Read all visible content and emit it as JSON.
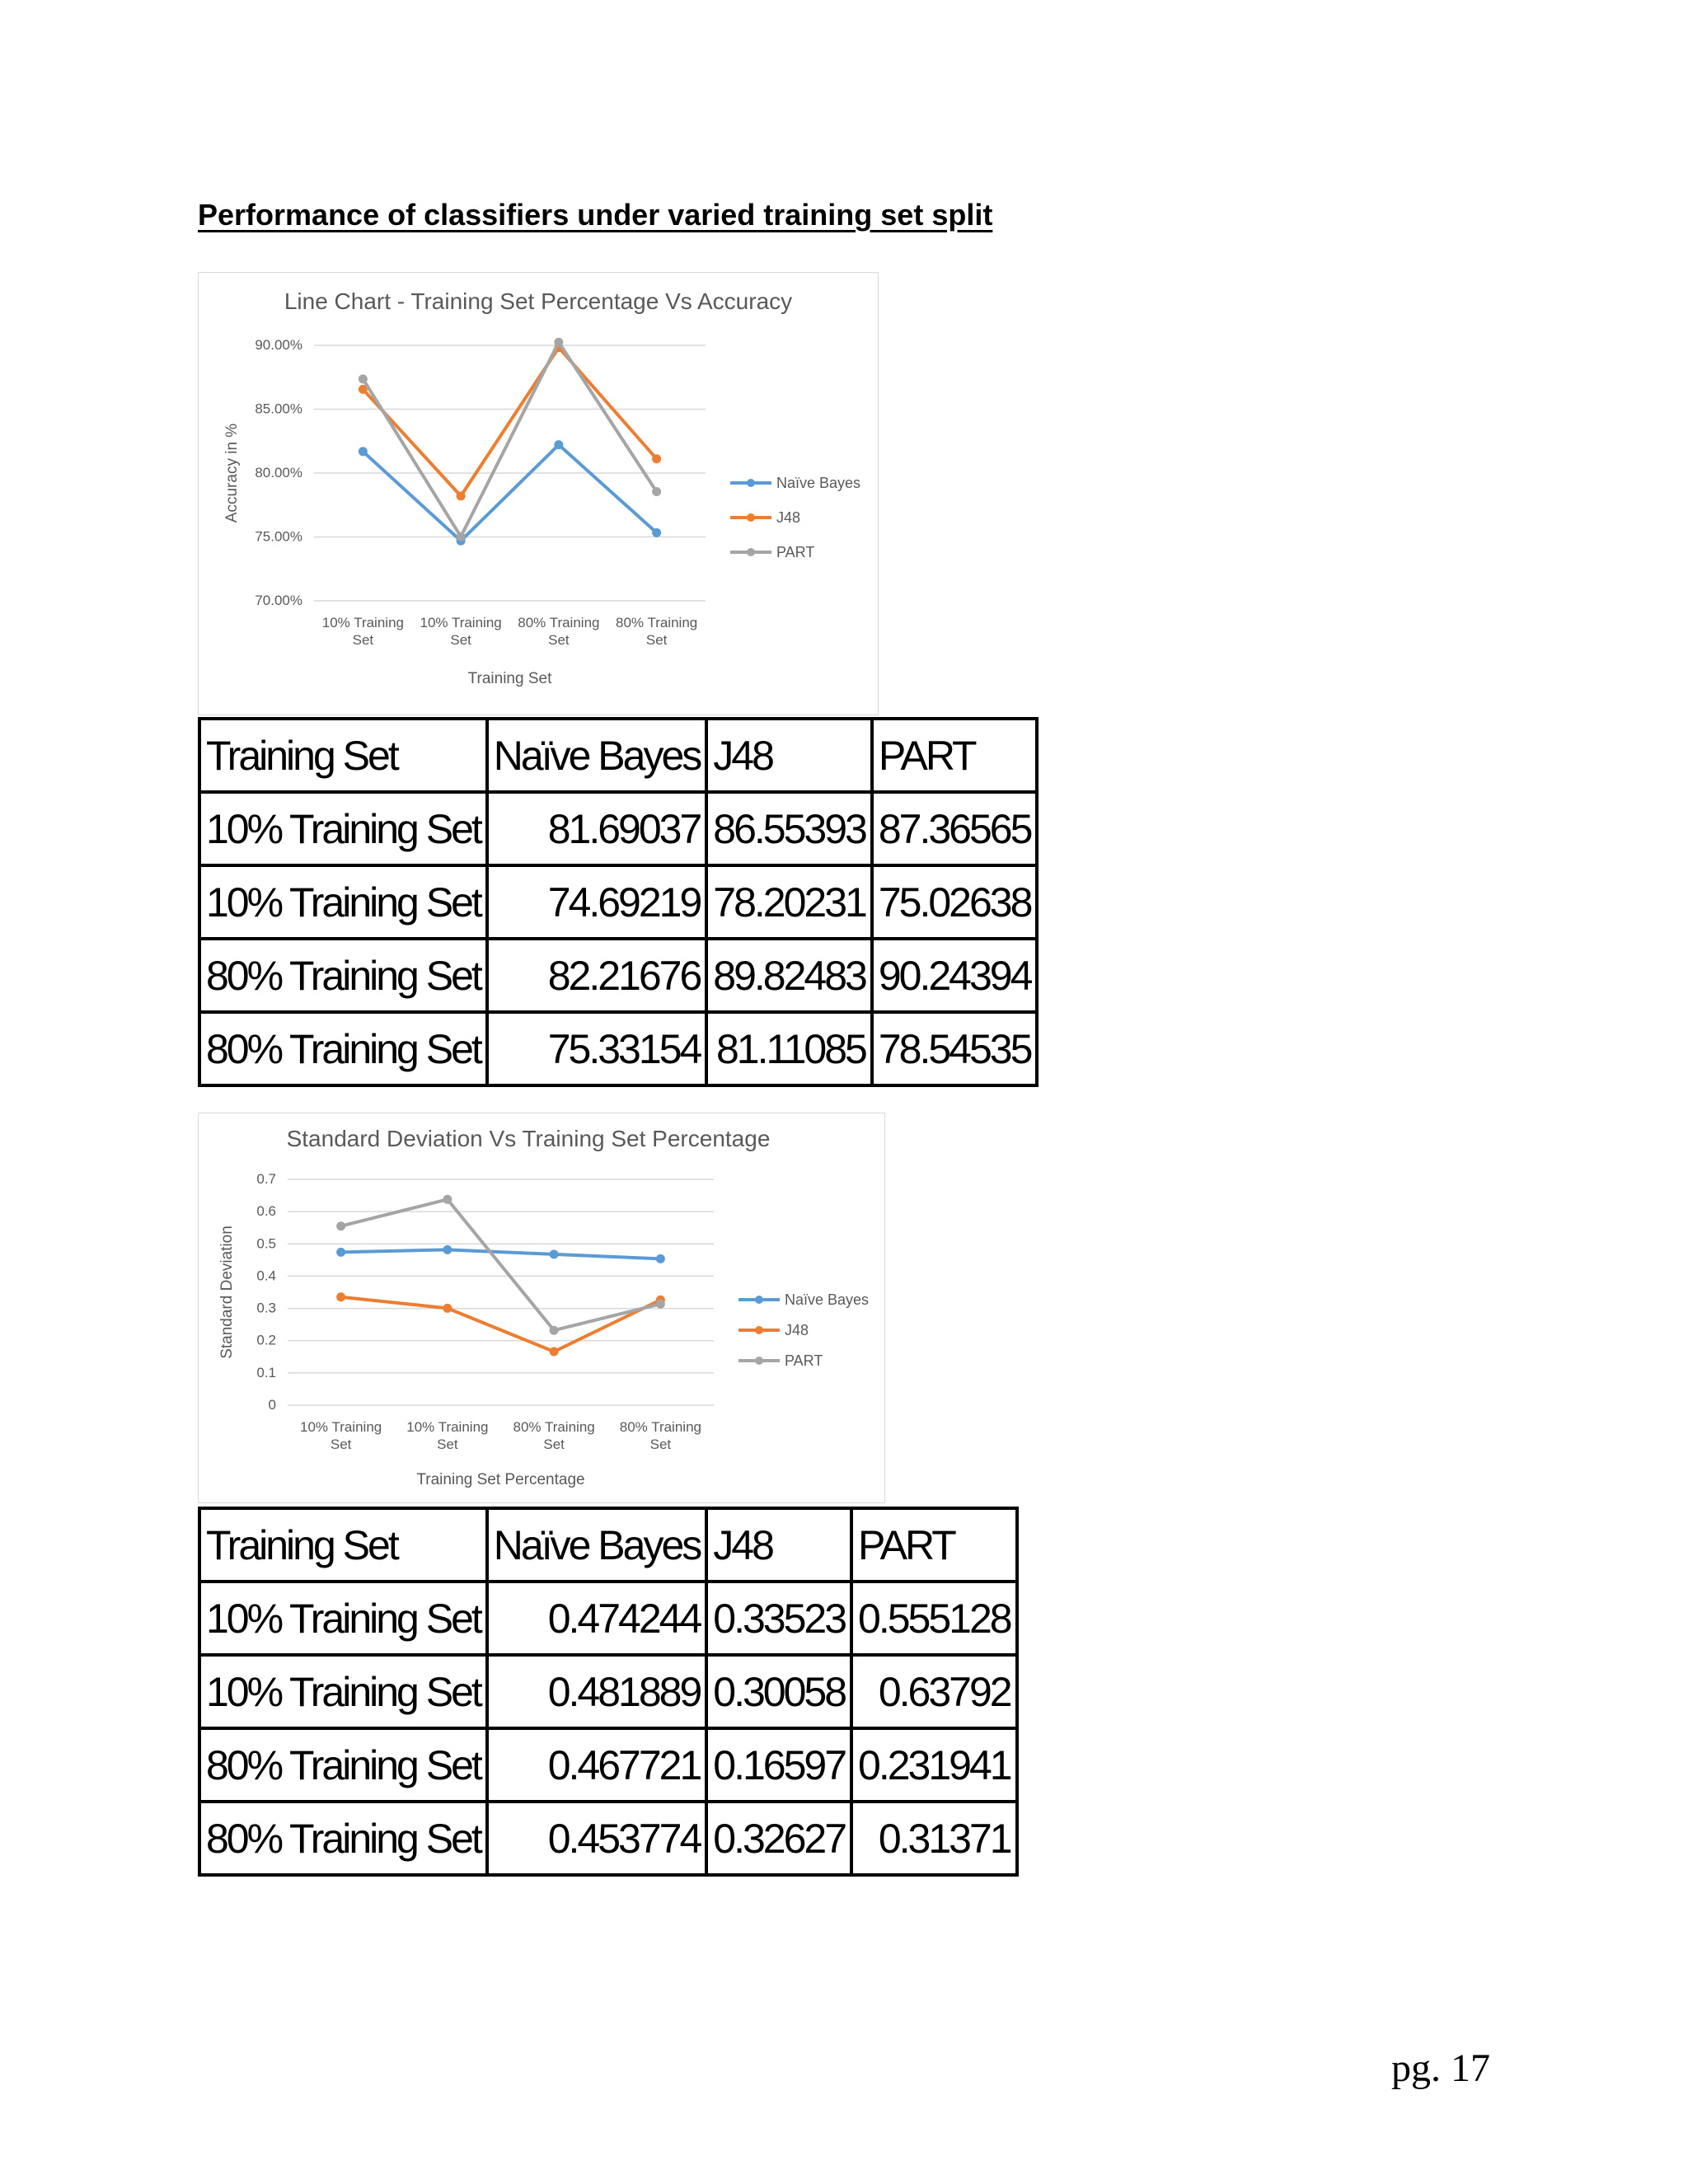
{
  "heading": "Performance of classifiers under varied training set split",
  "page_number": "pg. 17",
  "colors": {
    "naive_bayes": "#5b9bd5",
    "j48": "#ed7d31",
    "part": "#a5a5a5"
  },
  "chart_data": [
    {
      "type": "line",
      "title": "Line Chart - Training Set Percentage Vs Accuracy",
      "xlabel": "Training Set",
      "ylabel": "Accuracy in %",
      "categories": [
        "10% Training Set",
        "10% Training Set",
        "80% Training Set",
        "80% Training Set"
      ],
      "yticks": [
        "70.00%",
        "75.00%",
        "80.00%",
        "85.00%",
        "90.00%"
      ],
      "ylim": [
        70,
        90
      ],
      "grid": true,
      "legend": "right",
      "series": [
        {
          "name": "Naïve Bayes",
          "values": [
            81.69037,
            74.69219,
            82.21676,
            75.33154
          ]
        },
        {
          "name": "J48",
          "values": [
            86.55393,
            78.20231,
            89.82483,
            81.11085
          ]
        },
        {
          "name": "PART",
          "values": [
            87.36565,
            75.02638,
            90.24394,
            78.54535
          ]
        }
      ]
    },
    {
      "type": "line",
      "title": "Standard Deviation Vs Training Set Percentage",
      "xlabel": "Training Set Percentage",
      "ylabel": "Standard Deviation",
      "categories": [
        "10% Training Set",
        "10% Training Set",
        "80% Training Set",
        "80% Training Set"
      ],
      "yticks": [
        "0",
        "0.1",
        "0.2",
        "0.3",
        "0.4",
        "0.5",
        "0.6",
        "0.7"
      ],
      "ylim": [
        0,
        0.7
      ],
      "grid": true,
      "legend": "right",
      "series": [
        {
          "name": "Naïve Bayes",
          "values": [
            0.474244,
            0.481889,
            0.467721,
            0.453774
          ]
        },
        {
          "name": "J48",
          "values": [
            0.33523,
            0.30058,
            0.16597,
            0.32627
          ]
        },
        {
          "name": "PART",
          "values": [
            0.555128,
            0.63792,
            0.231941,
            0.31371
          ]
        }
      ]
    }
  ],
  "table1": {
    "headers": [
      "Training Set",
      "Naïve Bayes",
      "J48",
      "PART"
    ],
    "rows": [
      [
        "10% Training Set",
        "81.69037",
        "86.55393",
        "87.36565"
      ],
      [
        "10% Training Set",
        "74.69219",
        "78.20231",
        "75.02638"
      ],
      [
        "80% Training Set",
        "82.21676",
        "89.82483",
        "90.24394"
      ],
      [
        "80% Training Set",
        "75.33154",
        "81.11085",
        "78.54535"
      ]
    ]
  },
  "table2": {
    "headers": [
      "Training Set",
      "Naïve Bayes",
      "J48",
      "PART"
    ],
    "rows": [
      [
        "10% Training Set",
        "0.474244",
        "0.33523",
        "0.555128"
      ],
      [
        "10% Training Set",
        "0.481889",
        "0.30058",
        "0.63792"
      ],
      [
        "80% Training Set",
        "0.467721",
        "0.16597",
        "0.231941"
      ],
      [
        "80% Training Set",
        "0.453774",
        "0.32627",
        "0.31371"
      ]
    ]
  }
}
